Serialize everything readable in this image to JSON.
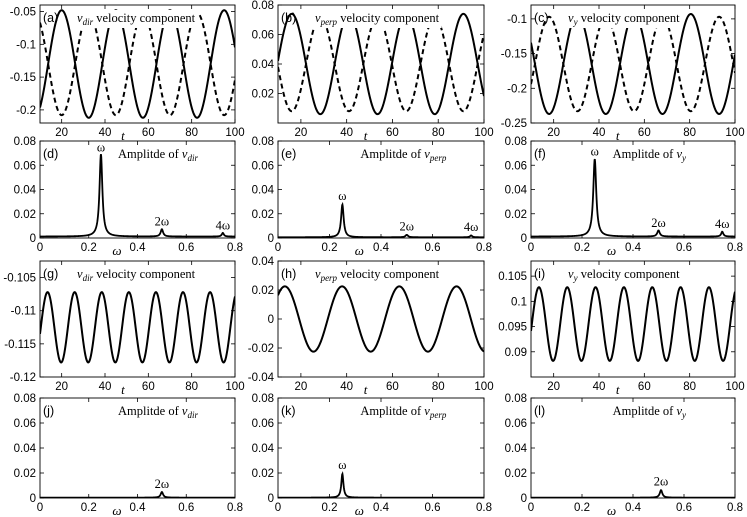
{
  "figure": {
    "background": "#ffffff",
    "line_color": "#000000"
  },
  "chart_data": [
    {
      "id": "a",
      "type": "line",
      "panel_label": "(a)",
      "title_var": "v",
      "title_sub": "dir",
      "title_text": " velocity component",
      "xlabel": "t",
      "xlim": [
        10,
        100
      ],
      "ylim": [
        -0.22,
        -0.04
      ],
      "xticks": [
        20,
        40,
        60,
        80,
        100
      ],
      "xtick_labels": [
        "20",
        "40",
        "60",
        "80",
        "100"
      ],
      "yticks": [
        -0.2,
        -0.15,
        -0.1,
        -0.05
      ],
      "ytick_labels": [
        "-0.2",
        "-0.15",
        "-0.1",
        "-0.05"
      ],
      "series": [
        {
          "name": "solid",
          "style": "solid",
          "kind": "sine",
          "mean": -0.13,
          "amp": 0.082,
          "period": 25,
          "phase_x": 20,
          "sign": 1
        },
        {
          "name": "dashed",
          "style": "dashed",
          "kind": "sine",
          "mean": -0.13,
          "amp": 0.078,
          "period": 25,
          "phase_x": 20,
          "sign": -1
        }
      ]
    },
    {
      "id": "b",
      "type": "line",
      "panel_label": "(b)",
      "title_var": "v",
      "title_sub": "perp",
      "title_text": " velocity component",
      "xlabel": "t",
      "xlim": [
        10,
        100
      ],
      "ylim": [
        0,
        0.08
      ],
      "xticks": [
        20,
        40,
        60,
        80,
        100
      ],
      "xtick_labels": [
        "20",
        "40",
        "60",
        "80",
        "100"
      ],
      "yticks": [
        0.02,
        0.04,
        0.06,
        0.08
      ],
      "ytick_labels": [
        "0.02",
        "0.04",
        "0.06",
        "0.08"
      ],
      "series": [
        {
          "name": "solid",
          "style": "solid",
          "kind": "sine",
          "mean": 0.04,
          "amp": 0.034,
          "period": 25,
          "phase_x": 16,
          "sign": 1
        },
        {
          "name": "dashed",
          "style": "dashed",
          "kind": "sine",
          "mean": 0.04,
          "amp": 0.032,
          "period": 25,
          "phase_x": 16,
          "sign": -1
        }
      ]
    },
    {
      "id": "c",
      "type": "line",
      "panel_label": "(c)",
      "title_var": "v",
      "title_sub": "y",
      "title_text": " velocity component",
      "xlabel": "t",
      "xlim": [
        10,
        100
      ],
      "ylim": [
        -0.25,
        -0.08
      ],
      "xticks": [
        20,
        40,
        60,
        80,
        100
      ],
      "xtick_labels": [
        "20",
        "40",
        "60",
        "80",
        "100"
      ],
      "yticks": [
        -0.25,
        -0.2,
        -0.15,
        -0.1
      ],
      "ytick_labels": [
        "-0.25",
        "-0.2",
        "-0.15",
        "-0.1"
      ],
      "series": [
        {
          "name": "solid",
          "style": "solid",
          "kind": "sine",
          "mean": -0.165,
          "amp": 0.072,
          "period": 25,
          "phase_x": 18,
          "sign": -1
        },
        {
          "name": "dashed",
          "style": "dashed",
          "kind": "sine",
          "mean": -0.165,
          "amp": 0.068,
          "period": 25,
          "phase_x": 18,
          "sign": 1
        }
      ]
    },
    {
      "id": "d",
      "type": "line",
      "panel_label": "(d)",
      "title_prefix": "Amplitde of ",
      "title_var": "v",
      "title_sub": "dir",
      "xlabel": "ω",
      "xlim": [
        0,
        0.8
      ],
      "ylim": [
        0,
        0.08
      ],
      "xticks": [
        0,
        0.2,
        0.4,
        0.6,
        0.8
      ],
      "xtick_labels": [
        "0",
        "0.2",
        "0.4",
        "0.6",
        "0.8"
      ],
      "yticks": [
        0,
        0.02,
        0.04,
        0.06,
        0.08
      ],
      "ytick_labels": [
        "0",
        "0.02",
        "0.04",
        "0.06",
        "0.08"
      ],
      "series": [
        {
          "name": "spectrum",
          "style": "solid",
          "kind": "peaks",
          "base": 0.0012,
          "peaks": [
            {
              "x": 0.25,
              "h": 0.068,
              "w": 0.007
            },
            {
              "x": 0.5,
              "h": 0.006,
              "w": 0.006
            },
            {
              "x": 0.75,
              "h": 0.003,
              "w": 0.005
            }
          ]
        }
      ],
      "annotations": [
        {
          "text": "ω",
          "x": 0.25,
          "y": 0.0695
        },
        {
          "text": "2ω",
          "x": 0.5,
          "y": 0.0085
        },
        {
          "text": "4ω",
          "x": 0.75,
          "y": 0.0055
        }
      ]
    },
    {
      "id": "e",
      "type": "line",
      "panel_label": "(e)",
      "title_prefix": "Amplitde of ",
      "title_var": "v",
      "title_sub": "perp",
      "xlabel": "ω",
      "xlim": [
        0,
        0.8
      ],
      "ylim": [
        0,
        0.08
      ],
      "xticks": [
        0,
        0.2,
        0.4,
        0.6,
        0.8
      ],
      "xtick_labels": [
        "0",
        "0.2",
        "0.4",
        "0.6",
        "0.8"
      ],
      "yticks": [
        0,
        0.02,
        0.04,
        0.06,
        0.08
      ],
      "ytick_labels": [
        "0",
        "0.02",
        "0.04",
        "0.06",
        "0.08"
      ],
      "series": [
        {
          "name": "spectrum",
          "style": "solid",
          "kind": "peaks",
          "base": 0.0006,
          "peaks": [
            {
              "x": 0.25,
              "h": 0.027,
              "w": 0.006
            },
            {
              "x": 0.5,
              "h": 0.002,
              "w": 0.006
            },
            {
              "x": 0.75,
              "h": 0.0015,
              "w": 0.005
            }
          ]
        }
      ],
      "annotations": [
        {
          "text": "ω",
          "x": 0.25,
          "y": 0.0295
        },
        {
          "text": "2ω",
          "x": 0.5,
          "y": 0.0045
        },
        {
          "text": "4ω",
          "x": 0.75,
          "y": 0.004
        }
      ]
    },
    {
      "id": "f",
      "type": "line",
      "panel_label": "(f)",
      "title_prefix": "Amplitde of ",
      "title_var": "v",
      "title_sub": "y",
      "xlabel": "ω",
      "xlim": [
        0,
        0.8
      ],
      "ylim": [
        0,
        0.08
      ],
      "xticks": [
        0,
        0.2,
        0.4,
        0.6,
        0.8
      ],
      "xtick_labels": [
        "0",
        "0.2",
        "0.4",
        "0.6",
        "0.8"
      ],
      "yticks": [
        0,
        0.02,
        0.04,
        0.06,
        0.08
      ],
      "ytick_labels": [
        "0",
        "0.02",
        "0.04",
        "0.06",
        "0.08"
      ],
      "series": [
        {
          "name": "spectrum",
          "style": "solid",
          "kind": "peaks",
          "base": 0.0012,
          "peaks": [
            {
              "x": 0.25,
              "h": 0.064,
              "w": 0.007
            },
            {
              "x": 0.5,
              "h": 0.005,
              "w": 0.006
            },
            {
              "x": 0.75,
              "h": 0.004,
              "w": 0.005
            }
          ]
        }
      ],
      "annotations": [
        {
          "text": "ω",
          "x": 0.25,
          "y": 0.0665
        },
        {
          "text": "2ω",
          "x": 0.5,
          "y": 0.0075
        },
        {
          "text": "4ω",
          "x": 0.75,
          "y": 0.0065
        }
      ]
    },
    {
      "id": "g",
      "type": "line",
      "panel_label": "(g)",
      "title_var": "v",
      "title_sub": "dir",
      "title_text": " velocity component",
      "xlabel": "t",
      "xlim": [
        10,
        100
      ],
      "ylim": [
        -0.12,
        -0.1025
      ],
      "xticks": [
        20,
        40,
        60,
        80,
        100
      ],
      "xtick_labels": [
        "20",
        "40",
        "60",
        "80",
        "100"
      ],
      "yticks": [
        -0.12,
        -0.115,
        -0.11,
        -0.105
      ],
      "ytick_labels": [
        "-0.12",
        "-0.115",
        "-0.11",
        "-0.105"
      ],
      "series": [
        {
          "name": "solid",
          "style": "solid",
          "kind": "sine",
          "mean": -0.1125,
          "amp": 0.0053,
          "period": 12.5,
          "phase_x": 13.5,
          "sign": 1
        }
      ]
    },
    {
      "id": "h",
      "type": "line",
      "panel_label": "(h)",
      "title_var": "v",
      "title_sub": "perp",
      "title_text": " velocity component",
      "xlabel": "t",
      "xlim": [
        10,
        100
      ],
      "ylim": [
        -0.04,
        0.04
      ],
      "xticks": [
        20,
        40,
        60,
        80,
        100
      ],
      "xtick_labels": [
        "20",
        "40",
        "60",
        "80",
        "100"
      ],
      "yticks": [
        -0.04,
        -0.02,
        0,
        0.02,
        0.04
      ],
      "ytick_labels": [
        "-0.04",
        "-0.02",
        "0",
        "0.02",
        "0.04"
      ],
      "series": [
        {
          "name": "solid",
          "style": "solid",
          "kind": "sine",
          "mean": 0,
          "amp": 0.0225,
          "period": 25,
          "phase_x": 13,
          "sign": 1
        }
      ]
    },
    {
      "id": "i",
      "type": "line",
      "panel_label": "(i)",
      "title_var": "v",
      "title_sub": "y",
      "title_text": " velocity component",
      "xlabel": "t",
      "xlim": [
        10,
        100
      ],
      "ylim": [
        0.085,
        0.108
      ],
      "xticks": [
        20,
        40,
        60,
        80,
        100
      ],
      "xtick_labels": [
        "20",
        "40",
        "60",
        "80",
        "100"
      ],
      "yticks": [
        0.09,
        0.095,
        0.1,
        0.105
      ],
      "ytick_labels": [
        "0.09",
        "0.095",
        "0.1",
        "0.105"
      ],
      "series": [
        {
          "name": "solid",
          "style": "solid",
          "kind": "sine",
          "mean": 0.0955,
          "amp": 0.0073,
          "period": 12.5,
          "phase_x": 13.5,
          "sign": 1
        }
      ]
    },
    {
      "id": "j",
      "type": "line",
      "panel_label": "(j)",
      "title_prefix": "Amplitde of ",
      "title_var": "v",
      "title_sub": "dir",
      "xlabel": "ω",
      "xlim": [
        0,
        0.8
      ],
      "ylim": [
        0,
        0.08
      ],
      "xticks": [
        0,
        0.2,
        0.4,
        0.6,
        0.8
      ],
      "xtick_labels": [
        "0",
        "0.2",
        "0.4",
        "0.6",
        "0.8"
      ],
      "yticks": [
        0,
        0.02,
        0.04,
        0.06,
        0.08
      ],
      "ytick_labels": [
        "0",
        "0.02",
        "0.04",
        "0.06",
        "0.08"
      ],
      "series": [
        {
          "name": "spectrum",
          "style": "solid",
          "kind": "peaks",
          "base": 0.0003,
          "peaks": [
            {
              "x": 0.5,
              "h": 0.0045,
              "w": 0.006
            }
          ]
        }
      ],
      "annotations": [
        {
          "text": "2ω",
          "x": 0.5,
          "y": 0.0065
        }
      ]
    },
    {
      "id": "k",
      "type": "line",
      "panel_label": "(k)",
      "title_prefix": "Amplitde of ",
      "title_var": "v",
      "title_sub": "perp",
      "xlabel": "ω",
      "xlim": [
        0,
        0.8
      ],
      "ylim": [
        0,
        0.08
      ],
      "xticks": [
        0,
        0.2,
        0.4,
        0.6,
        0.8
      ],
      "xtick_labels": [
        "0",
        "0.2",
        "0.4",
        "0.6",
        "0.8"
      ],
      "yticks": [
        0,
        0.02,
        0.04,
        0.06,
        0.08
      ],
      "ytick_labels": [
        "0",
        "0.02",
        "0.04",
        "0.06",
        "0.08"
      ],
      "series": [
        {
          "name": "spectrum",
          "style": "solid",
          "kind": "peaks",
          "base": 0.0003,
          "peaks": [
            {
              "x": 0.25,
              "h": 0.019,
              "w": 0.005
            }
          ]
        }
      ],
      "annotations": [
        {
          "text": "ω",
          "x": 0.25,
          "y": 0.0215
        }
      ]
    },
    {
      "id": "l",
      "type": "line",
      "panel_label": "(l)",
      "title_prefix": "Amplitde of ",
      "title_var": "v",
      "title_sub": "y",
      "xlabel": "ω",
      "xlim": [
        0,
        0.8
      ],
      "ylim": [
        0,
        0.08
      ],
      "xticks": [
        0,
        0.2,
        0.4,
        0.6,
        0.8
      ],
      "xtick_labels": [
        "0",
        "0.2",
        "0.4",
        "0.6",
        "0.8"
      ],
      "yticks": [
        0,
        0.02,
        0.04,
        0.06,
        0.08
      ],
      "ytick_labels": [
        "0",
        "0.02",
        "0.04",
        "0.06",
        "0.08"
      ],
      "series": [
        {
          "name": "spectrum",
          "style": "solid",
          "kind": "peaks",
          "base": 0.0003,
          "peaks": [
            {
              "x": 0.51,
              "h": 0.006,
              "w": 0.006
            }
          ]
        }
      ],
      "annotations": [
        {
          "text": "2ω",
          "x": 0.51,
          "y": 0.0085
        }
      ]
    }
  ]
}
